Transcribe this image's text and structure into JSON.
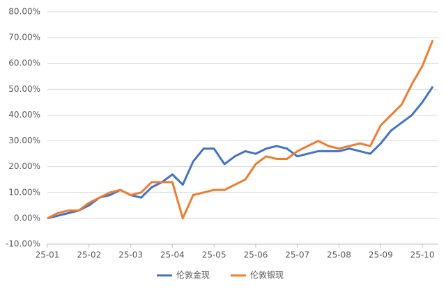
{
  "chart_data": {
    "type": "line",
    "categories": [
      "25-01",
      null,
      null,
      null,
      "25-02",
      null,
      null,
      null,
      "25-03",
      null,
      null,
      null,
      "25-04",
      null,
      null,
      null,
      "25-05",
      null,
      null,
      null,
      "25-06",
      null,
      null,
      null,
      "25-07",
      null,
      null,
      null,
      "25-08",
      null,
      null,
      null,
      "25-09",
      null,
      null,
      null,
      "25-10",
      null
    ],
    "series": [
      {
        "name": "伦敦金现",
        "color": "#4472c4",
        "values": [
          0,
          1,
          2,
          3,
          5,
          8,
          9,
          11,
          9,
          8,
          12,
          14,
          17,
          13,
          22,
          27,
          27,
          21,
          24,
          26,
          25,
          27,
          28,
          27,
          24,
          25,
          26,
          26,
          26,
          27,
          26,
          25,
          29,
          34,
          37,
          40,
          45,
          51
        ]
      },
      {
        "name": "伦敦银现",
        "color": "#ed7d31",
        "values": [
          0,
          2,
          3,
          3,
          6,
          8,
          10,
          11,
          9,
          10,
          14,
          14,
          14,
          0,
          9,
          10,
          11,
          11,
          13,
          15,
          21,
          24,
          23,
          23,
          26,
          28,
          30,
          28,
          27,
          28,
          29,
          28,
          36,
          40,
          44,
          52,
          59,
          69
        ]
      }
    ],
    "ylim": [
      -10,
      80
    ],
    "yticks": [
      {
        "value": -10,
        "label": "-10.00%"
      },
      {
        "value": 0,
        "label": "0.00%"
      },
      {
        "value": 10,
        "label": "10.00%"
      },
      {
        "value": 20,
        "label": "20.00%"
      },
      {
        "value": 30,
        "label": "30.00%"
      },
      {
        "value": 40,
        "label": "40.00%"
      },
      {
        "value": 50,
        "label": "50.00%"
      },
      {
        "value": 60,
        "label": "60.00%"
      },
      {
        "value": 70,
        "label": "70.00%"
      },
      {
        "value": 80,
        "label": "80.00%"
      }
    ],
    "grid": true,
    "legend": "bottom"
  }
}
